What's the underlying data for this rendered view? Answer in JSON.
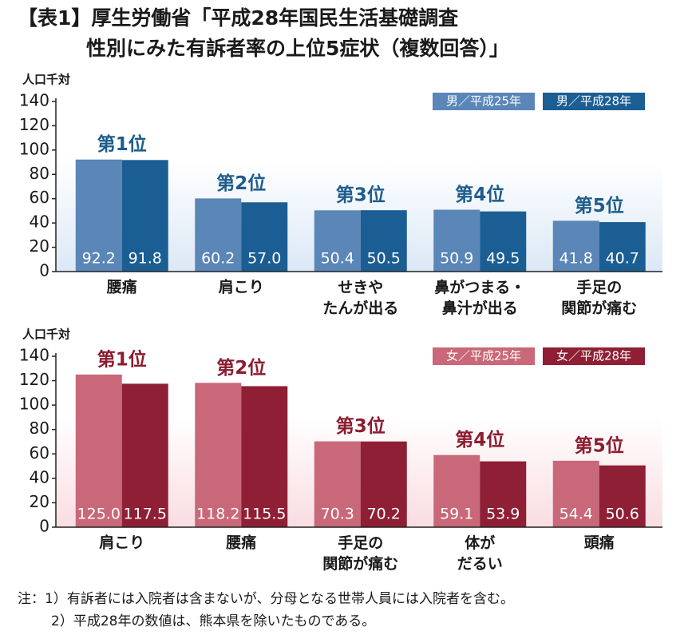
{
  "title": [
    "【表1】厚生労働省「平成28年国民生活基礎調査",
    "性別にみた有訴者率の上位5症状（複数回答）」"
  ],
  "notes": [
    "注：1）有訴者には入院者は含まないが、分母となる世帯人員には入院者を含む。",
    "2）平成28年の数値は、熊本県を除いたものである。"
  ],
  "chart_data": [
    {
      "type": "bar",
      "y_label": "人口千対",
      "categories": [
        "腰痛",
        "肩こり",
        "せきや\nたんが出る",
        "鼻がつまる・\n鼻汁が出る",
        "手足の\n関節が痛む"
      ],
      "rank_labels": [
        "第1位",
        "第2位",
        "第3位",
        "第4位",
        "第5位"
      ],
      "rank_color": "#1d5c8c",
      "series": [
        {
          "name": "男／平成25年",
          "color": "#5a86b8",
          "values": [
            92.2,
            60.2,
            50.4,
            50.9,
            41.8
          ],
          "value_labels": [
            "92.2",
            "60.2",
            "50.4",
            "50.9",
            "41.8"
          ]
        },
        {
          "name": "男／平成28年",
          "color": "#1b5e93",
          "values": [
            91.8,
            57.0,
            50.5,
            49.5,
            40.7
          ],
          "value_labels": [
            "91.8",
            "57.0",
            "50.5",
            "49.5",
            "40.7"
          ]
        }
      ],
      "ylim": [
        0,
        140
      ],
      "yticks": [
        0,
        20,
        40,
        60,
        80,
        100,
        120,
        140
      ],
      "grid": false,
      "legend": "upper right",
      "background": "#dbe8f5"
    },
    {
      "type": "bar",
      "y_label": "人口千対",
      "categories": [
        "肩こり",
        "腰痛",
        "手足の\n関節が痛む",
        "体が\nだるい",
        "頭痛"
      ],
      "rank_labels": [
        "第1位",
        "第2位",
        "第3位",
        "第4位",
        "第5位"
      ],
      "rank_color": "#8c1c30",
      "series": [
        {
          "name": "女／平成25年",
          "color": "#c86878",
          "values": [
            125.0,
            118.2,
            70.3,
            59.1,
            54.4
          ],
          "value_labels": [
            "125.0",
            "118.2",
            "70.3",
            "59.1",
            "54.4"
          ]
        },
        {
          "name": "女／平成28年",
          "color": "#8e1f35",
          "values": [
            117.5,
            115.5,
            70.2,
            53.9,
            50.6
          ],
          "value_labels": [
            "117.5",
            "115.5",
            "70.2",
            "53.9",
            "50.6"
          ]
        }
      ],
      "ylim": [
        0,
        140
      ],
      "yticks": [
        0,
        20,
        40,
        60,
        80,
        100,
        120,
        140
      ],
      "grid": false,
      "legend": "upper right",
      "background": "#f9dde2"
    }
  ]
}
